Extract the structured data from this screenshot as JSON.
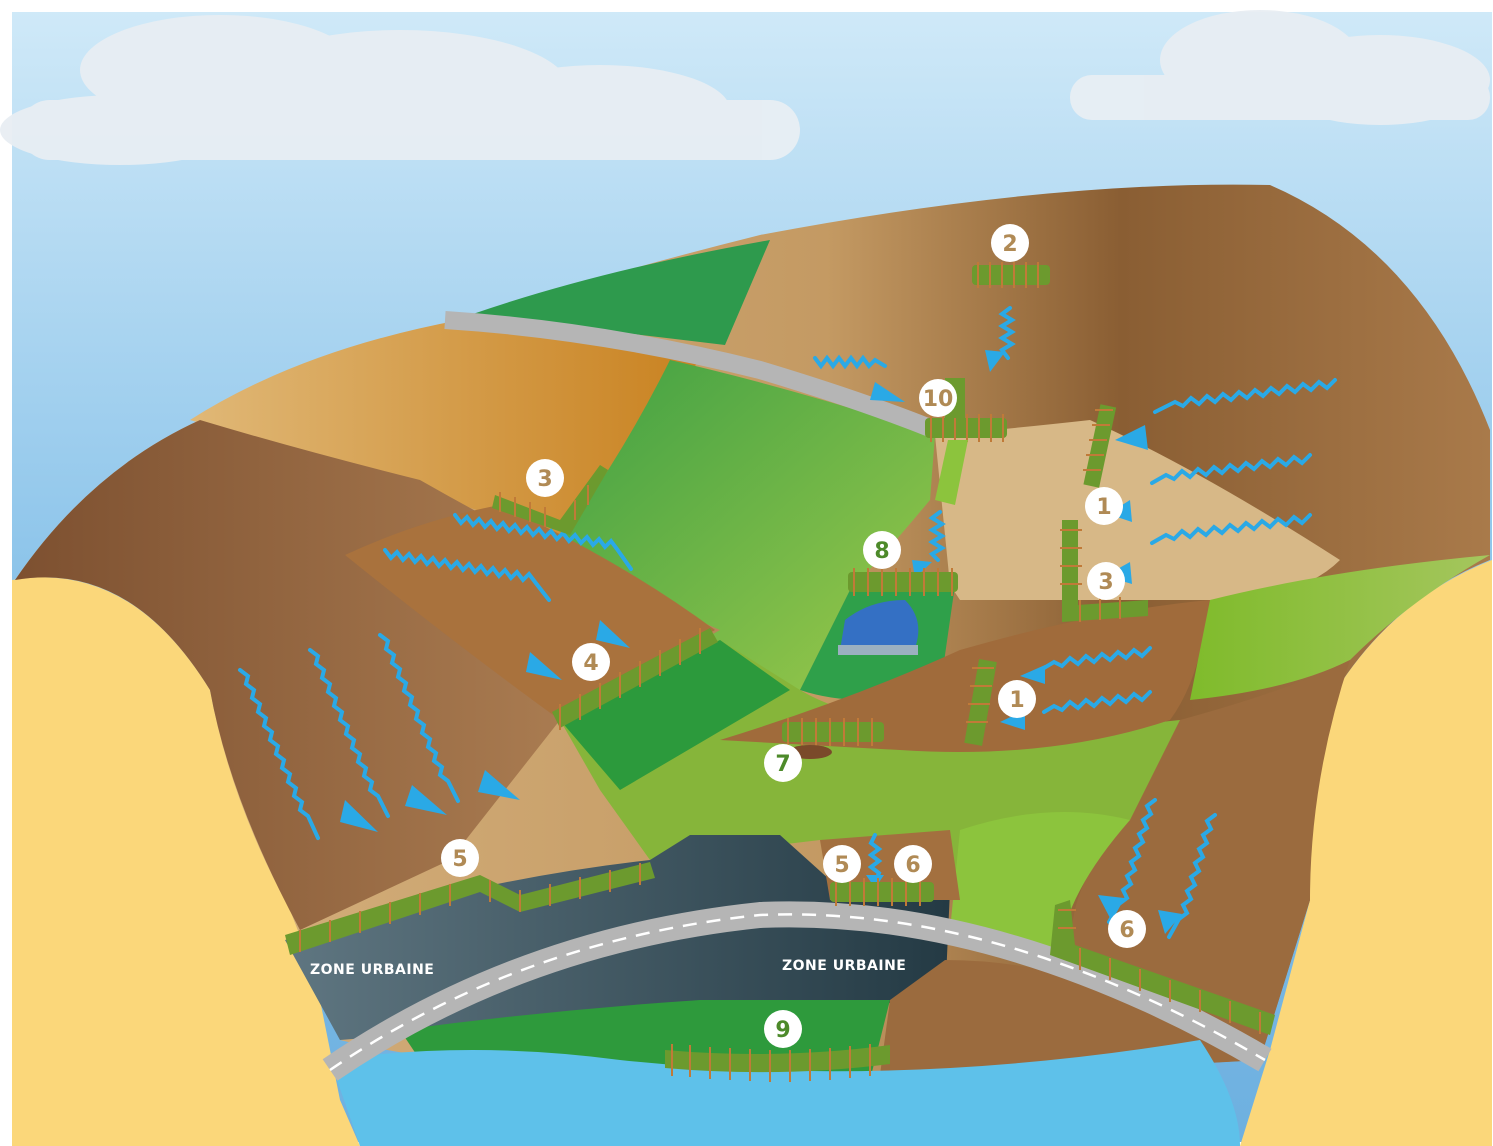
{
  "colors": {
    "sky": "#9fd0ef",
    "water": "#5ec1ea",
    "runoff_arrows": "#2aa9e6",
    "hedge": "#6c9a2e",
    "marker_fill": "#ffffff",
    "marker_text": "#b08a55",
    "marker_text_green": "#4d8a2a",
    "urban": "#3a4f58",
    "road": "#b5b5b5"
  },
  "markers": [
    {
      "id": "m2-top",
      "label": "2",
      "icon": "hedge-icon"
    },
    {
      "id": "m10",
      "label": "10",
      "icon": "hedge-icon"
    },
    {
      "id": "m3-left",
      "label": "3",
      "icon": "hedge-icon"
    },
    {
      "id": "m1-upper",
      "label": "1",
      "icon": "hedge-icon"
    },
    {
      "id": "m3-right",
      "label": "3",
      "icon": "hedge-icon"
    },
    {
      "id": "m8",
      "label": "8",
      "icon": "hedge-icon"
    },
    {
      "id": "m4",
      "label": "4",
      "icon": "hedge-icon"
    },
    {
      "id": "m1-lower",
      "label": "1",
      "icon": "hedge-icon"
    },
    {
      "id": "m7",
      "label": "7",
      "icon": "hedge-icon"
    },
    {
      "id": "m5-left",
      "label": "5",
      "icon": "hedge-icon"
    },
    {
      "id": "m5-center",
      "label": "5",
      "icon": "hedge-icon"
    },
    {
      "id": "m6-center",
      "label": "6",
      "icon": "hedge-icon"
    },
    {
      "id": "m6-right",
      "label": "6",
      "icon": "hedge-icon"
    },
    {
      "id": "m9",
      "label": "9",
      "icon": "hedge-icon"
    }
  ],
  "zones": [
    {
      "id": "zone-left",
      "label": "ZONE URBAINE"
    },
    {
      "id": "zone-center",
      "label": "ZONE URBAINE"
    }
  ]
}
